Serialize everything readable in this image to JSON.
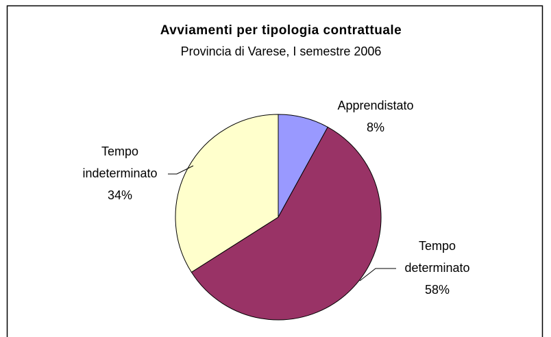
{
  "chart_data": {
    "type": "pie",
    "title": "Avviamenti per tipologia contrattuale",
    "subtitle": "Provincia di Varese, I semestre 2006",
    "categories": [
      "Apprendistato",
      "Tempo determinato",
      "Tempo indeterminato"
    ],
    "values": [
      8,
      58,
      34
    ],
    "value_labels": [
      "8%",
      "58%",
      "34%"
    ],
    "colors": [
      "#9999ff",
      "#993366",
      "#ffffcc"
    ]
  }
}
